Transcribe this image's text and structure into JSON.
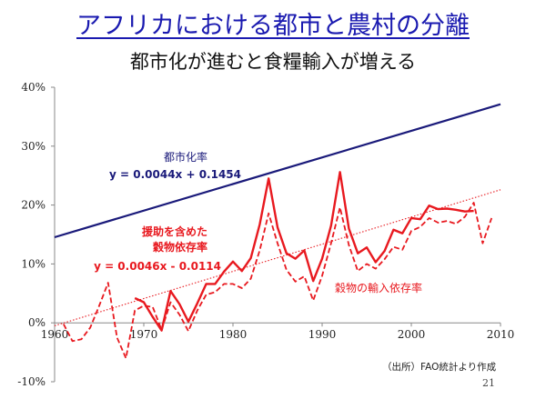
{
  "slide": {
    "title": "アフリカにおける都市と農村の分離",
    "subtitle": "都市化が進むと食糧輸入が増える",
    "source_note": "（出所）FAO統計より作成",
    "page_number": "21"
  },
  "colors": {
    "title": "#1a1ab0",
    "urbanization": "#1a1a7a",
    "aid_grain": "#e8191f",
    "grain_import": "#e8191f",
    "trend": "#e8191f"
  },
  "chart_data": {
    "type": "line",
    "xlim": [
      1960,
      2010
    ],
    "ylim": [
      -10,
      40
    ],
    "x_ticks": [
      "1960",
      "1970",
      "1980",
      "1990",
      "2000",
      "2010"
    ],
    "y_ticks": [
      "40%",
      "30%",
      "20%",
      "10%",
      "0%",
      "-10%"
    ],
    "grid": false,
    "series": [
      {
        "name": "都市化率",
        "style": "solid",
        "x": [
          1960,
          2010
        ],
        "y": [
          14.54,
          37.12
        ]
      },
      {
        "name": "援助を含めた穀物依存率",
        "style": "solid",
        "x": [
          1969,
          1970,
          1971,
          1972,
          1973,
          1974,
          1975,
          1976,
          1977,
          1978,
          1979,
          1980,
          1981,
          1982,
          1983,
          1984,
          1985,
          1986,
          1987,
          1988,
          1989,
          1990,
          1991,
          1992,
          1993,
          1994,
          1995,
          1996,
          1997,
          1998,
          1999,
          2000,
          2001,
          2002,
          2003,
          2004,
          2005,
          2006,
          2007
        ],
        "y": [
          4.2,
          3.5,
          1.0,
          -1.3,
          5.4,
          3.2,
          0.2,
          3.3,
          6.6,
          6.6,
          8.7,
          10.4,
          8.8,
          11.0,
          16.7,
          24.5,
          16.2,
          11.8,
          10.9,
          12.3,
          7.1,
          10.9,
          16.5,
          25.6,
          16.0,
          11.8,
          12.8,
          10.3,
          12.2,
          15.8,
          15.2,
          17.8,
          17.6,
          19.9,
          19.3,
          19.4,
          19.2,
          18.9,
          19.0
        ]
      },
      {
        "name": "穀物の輸入依存率",
        "style": "dashed",
        "x": [
          1961,
          1962,
          1963,
          1964,
          1965,
          1966,
          1967,
          1968,
          1969,
          1970,
          1971,
          1972,
          1973,
          1974,
          1975,
          1976,
          1977,
          1978,
          1979,
          1980,
          1981,
          1982,
          1983,
          1984,
          1985,
          1986,
          1987,
          1988,
          1989,
          1990,
          1991,
          1992,
          1993,
          1994,
          1995,
          1996,
          1997,
          1998,
          1999,
          2000,
          2001,
          2002,
          2003,
          2004,
          2005,
          2006,
          2007,
          2008,
          2009
        ],
        "y": [
          -0.2,
          -3.1,
          -2.8,
          -0.8,
          2.9,
          6.8,
          -2.5,
          -6.0,
          2.1,
          2.9,
          2.7,
          -1.2,
          3.5,
          1.4,
          -1.4,
          2.1,
          4.8,
          5.2,
          6.6,
          6.6,
          5.9,
          7.5,
          12.3,
          18.6,
          13.5,
          9.0,
          7.0,
          7.9,
          3.8,
          8.0,
          13.5,
          19.6,
          13.2,
          8.8,
          10.0,
          9.2,
          10.8,
          12.9,
          12.4,
          15.6,
          16.3,
          17.8,
          17.0,
          17.3,
          16.8,
          18.0,
          20.4,
          13.5,
          17.8
        ]
      },
      {
        "name": "",
        "style": "dotted",
        "x": [
          1960,
          2010
        ],
        "y": [
          -0.5,
          22.6
        ]
      }
    ],
    "annotations": [
      {
        "lines": [
          "都市化率"
        ],
        "color": "#1a1a7a",
        "bold": false
      },
      {
        "lines": [
          "y = 0.0044x + 0.1454"
        ],
        "color": "#1a1a7a",
        "bold": true
      },
      {
        "lines": [
          "援助を含めた",
          "穀物依存率"
        ],
        "color": "#e8191f",
        "bold": true
      },
      {
        "lines": [
          "y = 0.0046x - 0.0114"
        ],
        "color": "#e8191f",
        "bold": true
      },
      {
        "lines": [
          "穀物の輸入依存率"
        ],
        "color": "#e8191f",
        "bold": false
      }
    ]
  }
}
